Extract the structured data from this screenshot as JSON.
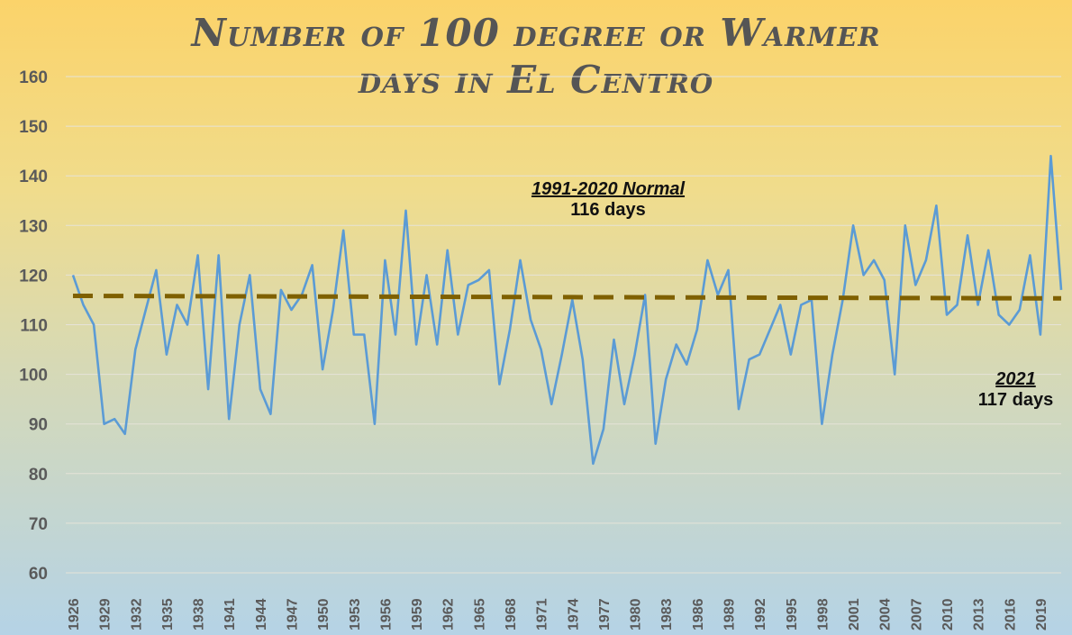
{
  "chart_data": {
    "type": "line",
    "title_line1": "Number of 100 degree or Warmer",
    "title_line2": "days in El Centro",
    "ylim": [
      60,
      160
    ],
    "yticks": [
      60,
      70,
      80,
      90,
      100,
      110,
      120,
      130,
      140,
      150,
      160
    ],
    "xlim": [
      1926,
      2021
    ],
    "xticks": [
      1926,
      1929,
      1932,
      1935,
      1938,
      1941,
      1944,
      1947,
      1950,
      1953,
      1956,
      1959,
      1962,
      1965,
      1968,
      1971,
      1974,
      1977,
      1980,
      1983,
      1986,
      1989,
      1992,
      1995,
      1998,
      2001,
      2004,
      2007,
      2010,
      2013,
      2016,
      2019
    ],
    "grid": true,
    "series": [
      {
        "color": "#5b9bd5",
        "x": [
          1926,
          1927,
          1928,
          1929,
          1930,
          1931,
          1932,
          1933,
          1934,
          1935,
          1936,
          1937,
          1938,
          1939,
          1940,
          1941,
          1942,
          1943,
          1944,
          1945,
          1946,
          1947,
          1948,
          1949,
          1950,
          1951,
          1952,
          1953,
          1954,
          1955,
          1956,
          1957,
          1958,
          1959,
          1960,
          1961,
          1962,
          1963,
          1964,
          1965,
          1966,
          1967,
          1968,
          1969,
          1970,
          1971,
          1972,
          1973,
          1974,
          1975,
          1976,
          1977,
          1978,
          1979,
          1980,
          1981,
          1982,
          1983,
          1984,
          1985,
          1986,
          1987,
          1988,
          1989,
          1990,
          1991,
          1992,
          1993,
          1994,
          1995,
          1996,
          1997,
          1998,
          1999,
          2000,
          2001,
          2002,
          2003,
          2004,
          2005,
          2006,
          2007,
          2008,
          2009,
          2010,
          2011,
          2012,
          2013,
          2014,
          2015,
          2016,
          2017,
          2018,
          2019,
          2020,
          2021
        ],
        "values": [
          120,
          114,
          110,
          90,
          91,
          88,
          105,
          113,
          121,
          104,
          114,
          110,
          124,
          97,
          124,
          91,
          110,
          120,
          97,
          92,
          117,
          113,
          116,
          122,
          101,
          113,
          129,
          108,
          108,
          90,
          123,
          108,
          133,
          106,
          120,
          106,
          125,
          108,
          118,
          119,
          121,
          98,
          109,
          123,
          111,
          105,
          94,
          104,
          115,
          103,
          82,
          89,
          107,
          94,
          104,
          116,
          86,
          99,
          106,
          102,
          109,
          123,
          116,
          121,
          93,
          103,
          104,
          109,
          114,
          104,
          114,
          115,
          90,
          104,
          115,
          130,
          120,
          123,
          119,
          100,
          130,
          118,
          123,
          134,
          112,
          114,
          128,
          114,
          125,
          112,
          110,
          113,
          124,
          108,
          144,
          117
        ]
      },
      {
        "color": "#7f6000",
        "style": "dashed",
        "x": [
          1926,
          2021
        ],
        "values": [
          115.8,
          115.3
        ]
      }
    ],
    "annotations": [
      {
        "header": "1991-2020 Normal",
        "value": "116 days"
      },
      {
        "header": "2021",
        "value": "117 days"
      }
    ]
  }
}
